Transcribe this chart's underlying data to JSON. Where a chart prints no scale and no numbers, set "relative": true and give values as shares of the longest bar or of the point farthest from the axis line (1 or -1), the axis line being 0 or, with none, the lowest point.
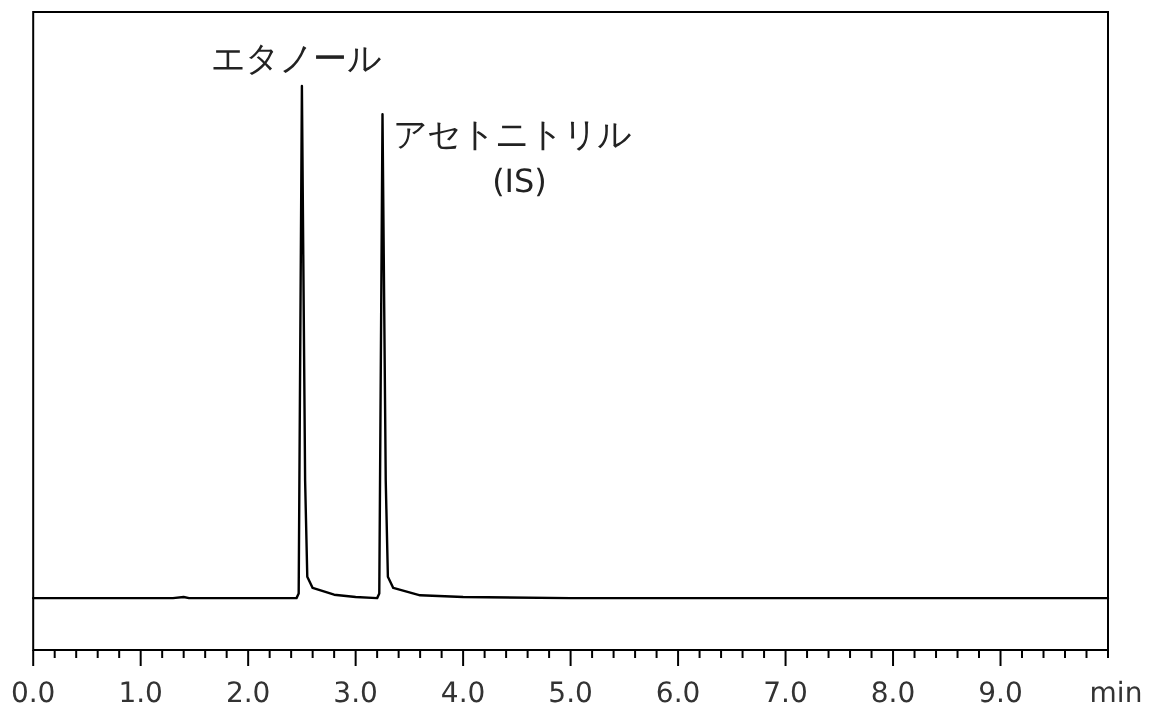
{
  "chart_data": {
    "type": "line",
    "relative": true,
    "xlabel": "min",
    "xlim": [
      0,
      10
    ],
    "xticks": [
      {
        "value": 0,
        "label": "0.0"
      },
      {
        "value": 0.2,
        "label": null
      },
      {
        "value": 0.4,
        "label": null
      },
      {
        "value": 0.6,
        "label": null
      },
      {
        "value": 0.8,
        "label": null
      },
      {
        "value": 1,
        "label": "1.0"
      },
      {
        "value": 1.2,
        "label": null
      },
      {
        "value": 1.4,
        "label": null
      },
      {
        "value": 1.6,
        "label": null
      },
      {
        "value": 1.8,
        "label": null
      },
      {
        "value": 2,
        "label": "2.0"
      },
      {
        "value": 2.2,
        "label": null
      },
      {
        "value": 2.4,
        "label": null
      },
      {
        "value": 2.6,
        "label": null
      },
      {
        "value": 2.8,
        "label": null
      },
      {
        "value": 3,
        "label": "3.0"
      },
      {
        "value": 3.2,
        "label": null
      },
      {
        "value": 3.4,
        "label": null
      },
      {
        "value": 3.6,
        "label": null
      },
      {
        "value": 3.8,
        "label": null
      },
      {
        "value": 4,
        "label": "4.0"
      },
      {
        "value": 4.2,
        "label": null
      },
      {
        "value": 4.4,
        "label": null
      },
      {
        "value": 4.6,
        "label": null
      },
      {
        "value": 4.8,
        "label": null
      },
      {
        "value": 5,
        "label": "5.0"
      },
      {
        "value": 5.2,
        "label": null
      },
      {
        "value": 5.4,
        "label": null
      },
      {
        "value": 5.6,
        "label": null
      },
      {
        "value": 5.8,
        "label": null
      },
      {
        "value": 6,
        "label": "6.0"
      },
      {
        "value": 6.2,
        "label": null
      },
      {
        "value": 6.4,
        "label": null
      },
      {
        "value": 6.6,
        "label": null
      },
      {
        "value": 6.8,
        "label": null
      },
      {
        "value": 7,
        "label": "7.0"
      },
      {
        "value": 7.2,
        "label": null
      },
      {
        "value": 7.4,
        "label": null
      },
      {
        "value": 7.6,
        "label": null
      },
      {
        "value": 7.8,
        "label": null
      },
      {
        "value": 8,
        "label": "8.0"
      },
      {
        "value": 8.2,
        "label": null
      },
      {
        "value": 8.4,
        "label": null
      },
      {
        "value": 8.6,
        "label": null
      },
      {
        "value": 8.8,
        "label": null
      },
      {
        "value": 9,
        "label": "9.0"
      },
      {
        "value": 9.2,
        "label": null
      },
      {
        "value": 9.4,
        "label": null
      },
      {
        "value": 9.6,
        "label": null
      },
      {
        "value": 9.8,
        "label": null
      },
      {
        "value": 10,
        "label": null
      }
    ],
    "x": [
      0,
      1.3,
      1.4,
      1.45,
      2.45,
      2.47,
      2.5,
      2.53,
      2.55,
      2.6,
      2.8,
      3.0,
      3.2,
      3.22,
      3.25,
      3.28,
      3.3,
      3.35,
      3.6,
      4.0,
      5.0,
      10
    ],
    "series": [
      {
        "color": "#000000",
        "values": [
          0.092,
          0.092,
          0.094,
          0.092,
          0.092,
          0.1,
          1.0,
          0.3,
          0.13,
          0.11,
          0.098,
          0.094,
          0.092,
          0.1,
          0.95,
          0.3,
          0.13,
          0.11,
          0.097,
          0.094,
          0.092,
          0.092
        ]
      }
    ],
    "annotations": [
      {
        "text": "エタノール",
        "x": 2.5,
        "y": 1.0
      },
      {
        "text": "アセトニトリル",
        "x": 3.25,
        "y": 0.95
      },
      "(IS)"
    ]
  }
}
